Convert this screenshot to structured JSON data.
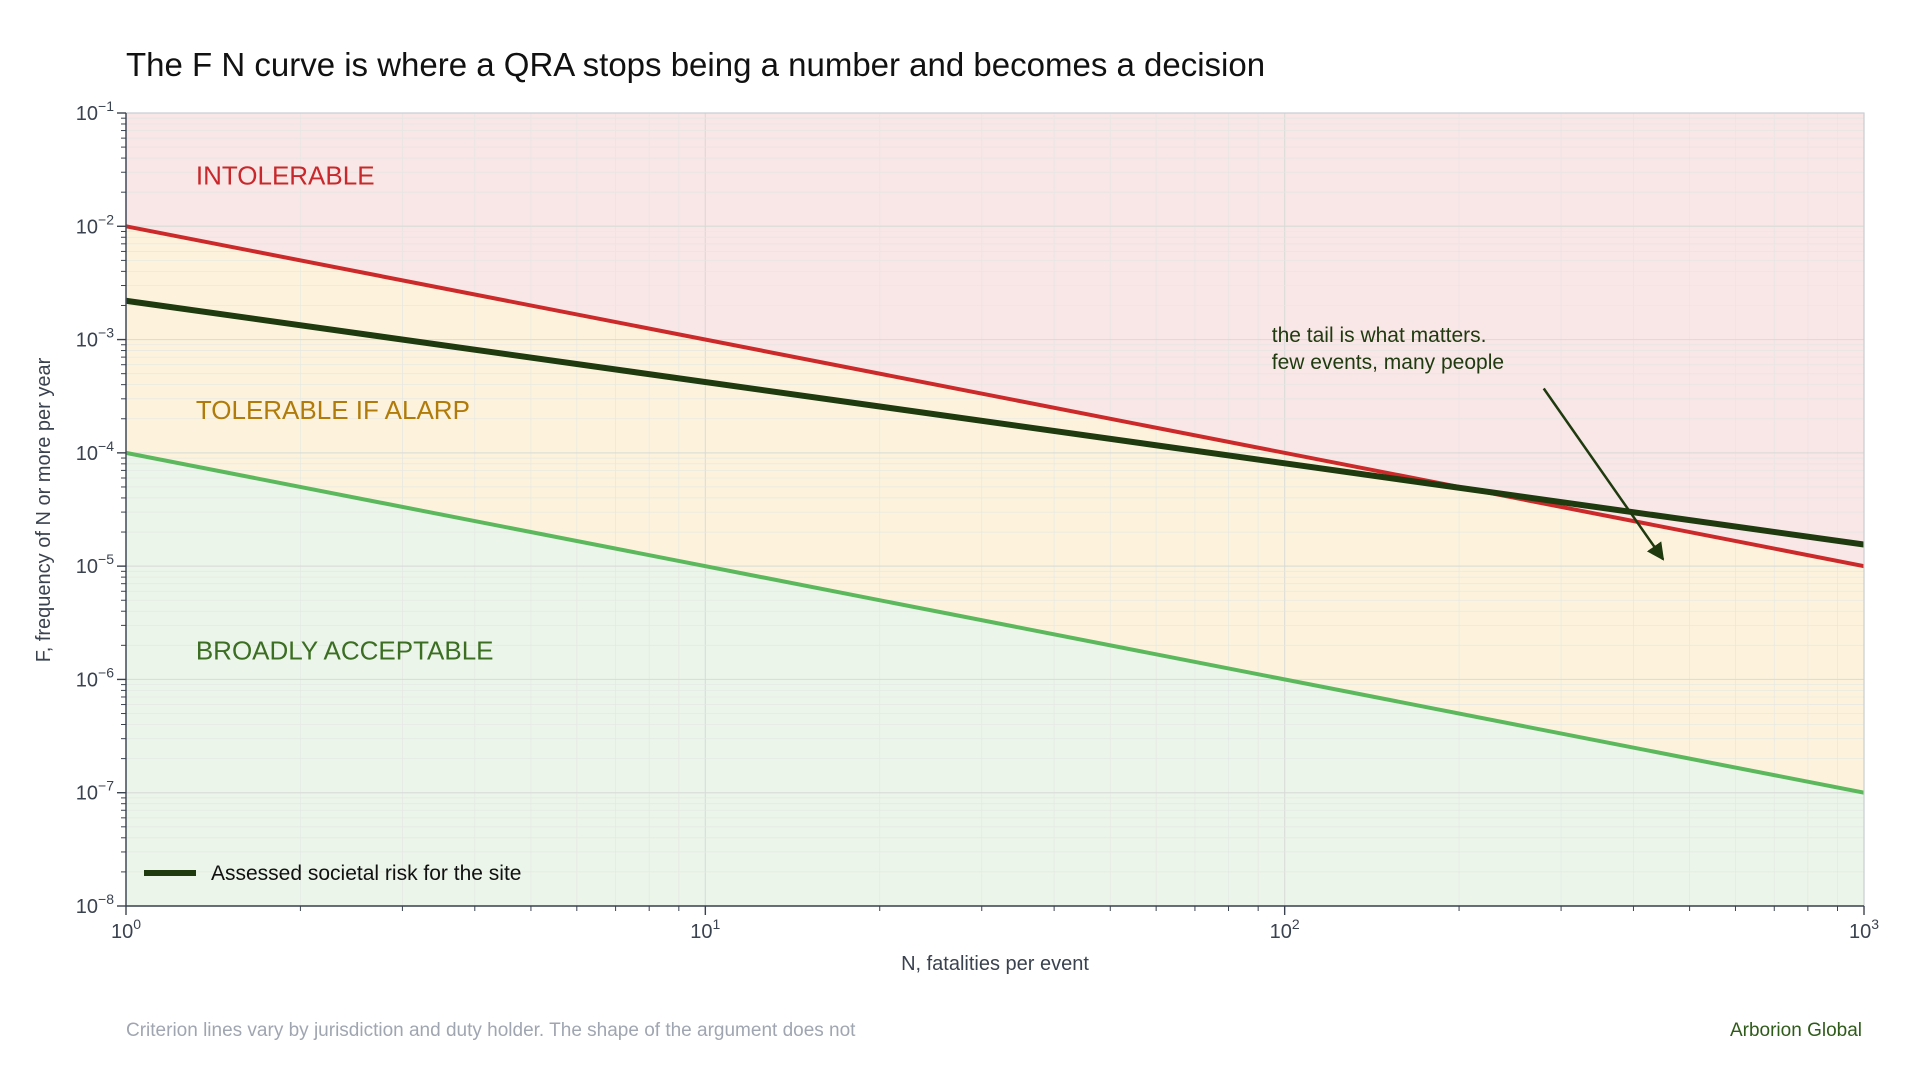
{
  "chart_data": {
    "type": "line",
    "title": "The F N curve is where a QRA stops being a number and becomes a decision",
    "xlabel": "N, fatalities per event",
    "ylabel": "F, frequency of N or more per year",
    "x_scale": "log",
    "y_scale": "log",
    "xlim": [
      1,
      1000
    ],
    "ylim": [
      1e-08,
      0.1
    ],
    "x_ticks": [
      {
        "value": 1,
        "base": "10",
        "exp": "0"
      },
      {
        "value": 10,
        "base": "10",
        "exp": "1"
      },
      {
        "value": 100,
        "base": "10",
        "exp": "2"
      },
      {
        "value": 1000,
        "base": "10",
        "exp": "3"
      }
    ],
    "y_ticks": [
      {
        "value": 1e-08,
        "base": "10",
        "exp": "−8"
      },
      {
        "value": 1e-07,
        "base": "10",
        "exp": "−7"
      },
      {
        "value": 1e-06,
        "base": "10",
        "exp": "−6"
      },
      {
        "value": 1e-05,
        "base": "10",
        "exp": "−5"
      },
      {
        "value": 0.0001,
        "base": "10",
        "exp": "−4"
      },
      {
        "value": 0.001,
        "base": "10",
        "exp": "−3"
      },
      {
        "value": 0.01,
        "base": "10",
        "exp": "−2"
      },
      {
        "value": 0.1,
        "base": "10",
        "exp": "−1"
      }
    ],
    "grid": true,
    "criterion_lines": [
      {
        "id": "intolerable",
        "points": [
          [
            1,
            0.01
          ],
          [
            1000,
            1e-05
          ]
        ],
        "color": "#cc2a2a"
      },
      {
        "id": "broadly-acceptable",
        "points": [
          [
            1,
            0.0001
          ],
          [
            1000,
            1e-07
          ]
        ],
        "color": "#5cb85c"
      }
    ],
    "regions": [
      {
        "label": "INTOLERABLE",
        "fill": "#f9e6e6",
        "text_color": "#c8282b",
        "label_at": [
          1.32,
          0.028
        ]
      },
      {
        "label": "TOLERABLE IF ALARP",
        "fill": "#fdf3dc",
        "text_color": "#b07b0a",
        "label_at": [
          1.32,
          0.00024
        ]
      },
      {
        "label": "BROADLY ACCEPTABLE",
        "fill": "#ebf5e9",
        "text_color": "#3b6e23",
        "label_at": [
          1.32,
          1.8e-06
        ]
      }
    ],
    "series": [
      {
        "name": "Assessed societal risk for the site",
        "color": "#1e3a0e",
        "x": [
          1,
          1000
        ],
        "y": [
          0.0022,
          1.55e-05
        ]
      }
    ],
    "legend": {
      "placement": "bottom-left"
    },
    "annotation": {
      "lines": [
        "the tail is what matters.",
        "few events, many people"
      ],
      "text_at": [
        95,
        0.00095
      ],
      "arrow_from": [
        280,
        0.00037
      ],
      "arrow_to": [
        450,
        1.15e-05
      ],
      "color": "#1e3a0e"
    }
  },
  "footer": {
    "note": "Criterion lines vary by jurisdiction and duty holder. The shape of the argument does not",
    "brand": "Arborion Global"
  }
}
